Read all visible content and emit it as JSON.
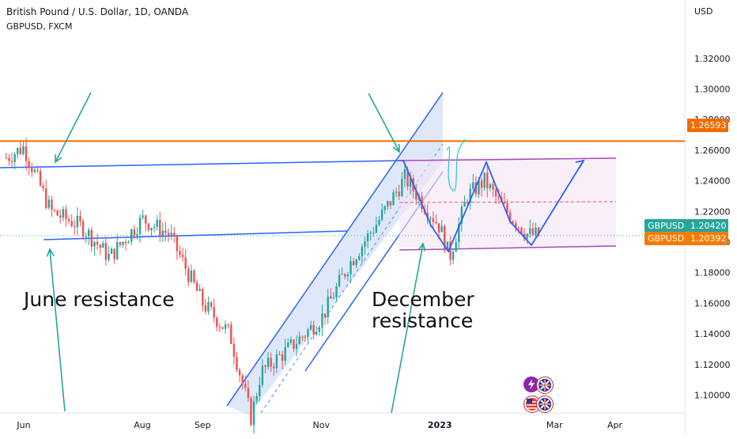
{
  "header": {
    "title": "British Pound / U.S. Dollar, 1D, OANDA",
    "subtitle": "GBPUSD, FXCM"
  },
  "annotations": {
    "june_resistance": "June resistance",
    "december_line1": "December",
    "december_line2": "resistance"
  },
  "price_axis": {
    "currency": "USD",
    "ticks": [
      "1.32000",
      "1.30000",
      "1.28000",
      "1.26000",
      "1.24000",
      "1.22000",
      "1.20000",
      "1.18000",
      "1.16000",
      "1.14000",
      "1.12000",
      "1.10000"
    ]
  },
  "time_axis": {
    "ticks": [
      "Jun",
      "Aug",
      "Sep",
      "Nov",
      "2023",
      "Mar",
      "Apr"
    ]
  },
  "badges": {
    "level": {
      "value": "1.26593",
      "color": "#ef6c00"
    },
    "oanda": {
      "symbol": "GBPUSD",
      "value": "1.20420",
      "color": "#26a69a"
    },
    "fxcm": {
      "symbol": "GBPUSD",
      "value": "1.20392",
      "color": "#f57c00"
    }
  },
  "colors": {
    "up": "#26a69a",
    "down": "#ef5350",
    "trendline": "#2962ff",
    "channel_fill": "#c5d5f7",
    "range_line": "#ab47bc",
    "arrow": "#26a69a",
    "resistance": "#ef6c00"
  },
  "chart_data": {
    "type": "candlestick",
    "symbol": "GBPUSD",
    "timeframe": "1D",
    "ylim": [
      1.09,
      1.33
    ],
    "x": [
      "2022-05-23",
      "2022-06-01",
      "2022-06-15",
      "2022-07-01",
      "2022-07-15",
      "2022-08-01",
      "2022-08-15",
      "2022-09-01",
      "2022-09-15",
      "2022-09-26",
      "2022-10-01",
      "2022-10-15",
      "2022-11-01",
      "2022-11-15",
      "2022-12-01",
      "2022-12-14",
      "2023-01-01",
      "2023-01-06",
      "2023-01-15",
      "2023-01-24",
      "2023-02-01",
      "2023-02-15",
      "2023-02-22"
    ],
    "close": [
      1.255,
      1.262,
      1.22,
      1.21,
      1.19,
      1.215,
      1.205,
      1.16,
      1.14,
      1.085,
      1.115,
      1.13,
      1.15,
      1.185,
      1.215,
      1.242,
      1.21,
      1.19,
      1.23,
      1.24,
      1.225,
      1.205,
      1.2042
    ],
    "levels": [
      {
        "label": "1.26593",
        "value": 1.26593
      }
    ],
    "last_prices": [
      {
        "source": "OANDA",
        "value": 1.2042
      },
      {
        "source": "FXCM",
        "value": 1.20392
      }
    ]
  }
}
